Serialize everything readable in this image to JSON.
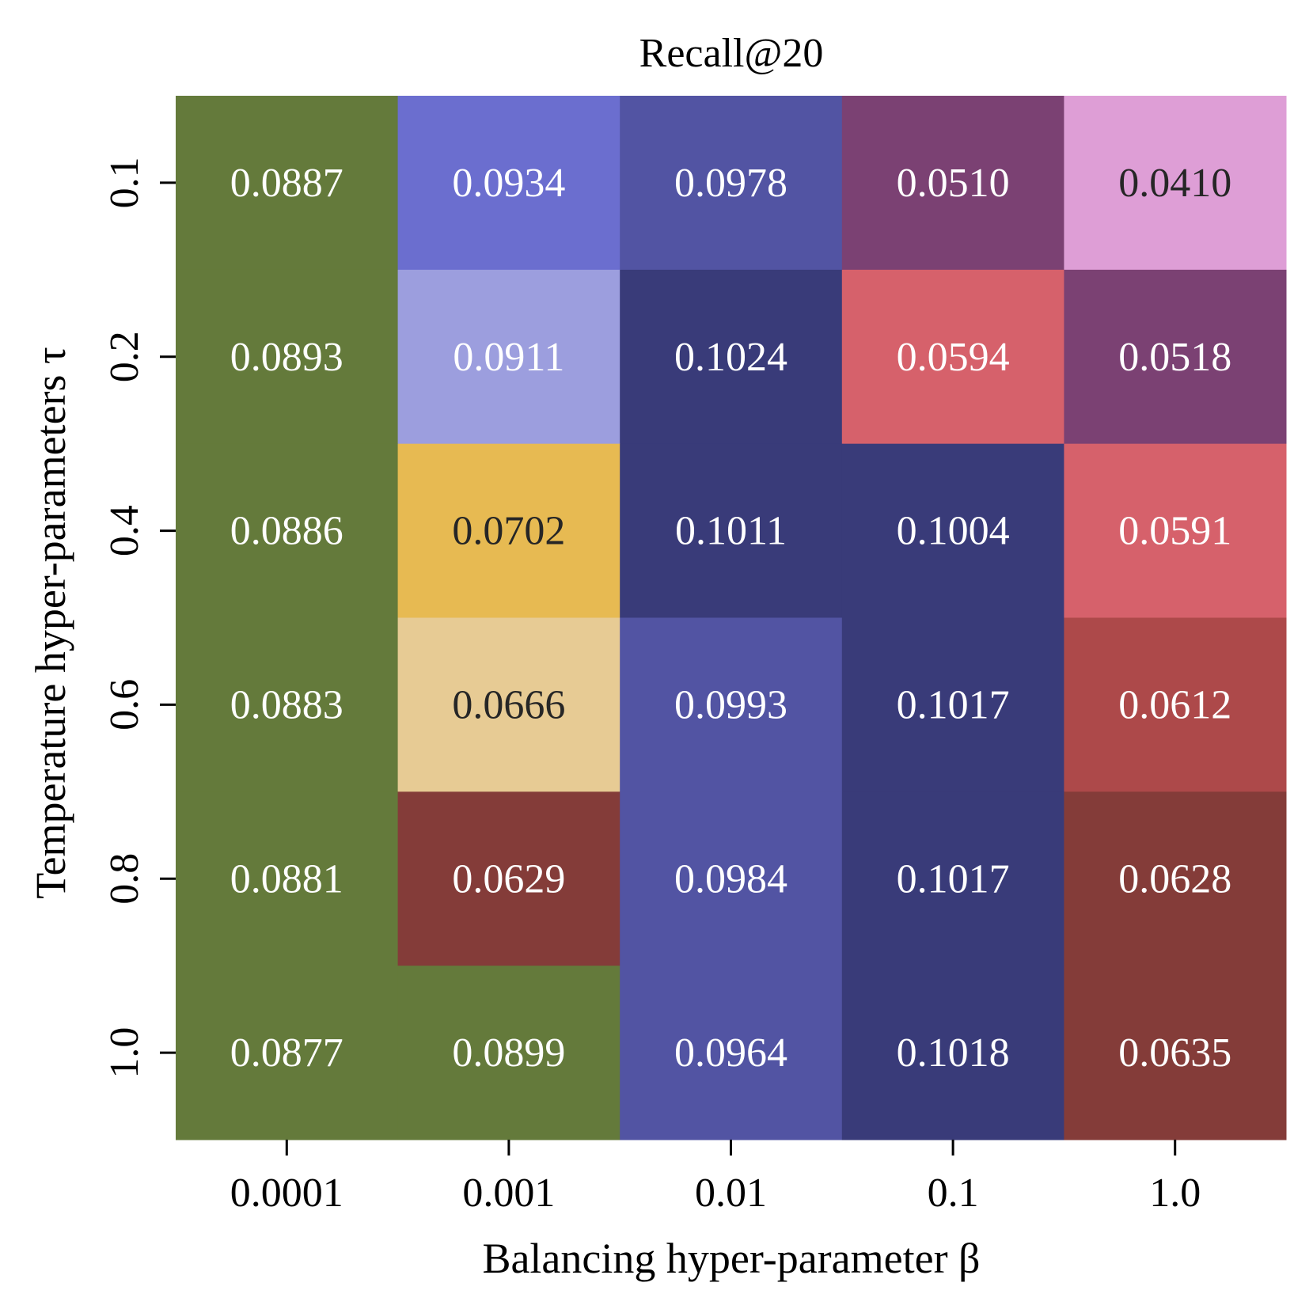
{
  "chart_data": {
    "type": "heatmap",
    "title": "Recall@20",
    "xlabel": "Balancing hyper-parameter β",
    "ylabel": "Temperature hyper-parameters τ",
    "x_categories": [
      "0.0001",
      "0.001",
      "0.01",
      "0.1",
      "1.0"
    ],
    "y_categories": [
      "0.1",
      "0.2",
      "0.4",
      "0.6",
      "0.8",
      "1.0"
    ],
    "values": [
      [
        "0.0887",
        "0.0934",
        "0.0978",
        "0.0510",
        "0.0410"
      ],
      [
        "0.0893",
        "0.0911",
        "0.1024",
        "0.0594",
        "0.0518"
      ],
      [
        "0.0886",
        "0.0702",
        "0.1011",
        "0.1004",
        "0.0591"
      ],
      [
        "0.0883",
        "0.0666",
        "0.0993",
        "0.1017",
        "0.0612"
      ],
      [
        "0.0881",
        "0.0629",
        "0.0984",
        "0.1017",
        "0.0628"
      ],
      [
        "0.0877",
        "0.0899",
        "0.0964",
        "0.1018",
        "0.0635"
      ]
    ],
    "cell_colors": [
      [
        "#647a3b",
        "#6b6ecf",
        "#5254a3",
        "#7b4173",
        "#de9ed6"
      ],
      [
        "#647a3b",
        "#9c9ede",
        "#393b79",
        "#d6616b",
        "#7b4173"
      ],
      [
        "#647a3b",
        "#e7ba52",
        "#393b79",
        "#393b79",
        "#d6616b"
      ],
      [
        "#647a3b",
        "#e7cb94",
        "#5254a3",
        "#393b79",
        "#ad494a"
      ],
      [
        "#647a3b",
        "#843c39",
        "#5254a3",
        "#393b79",
        "#843c39"
      ],
      [
        "#647a3b",
        "#647a3b",
        "#5254a3",
        "#393b79",
        "#843c39"
      ]
    ],
    "text_colors": [
      [
        "#ffffff",
        "#ffffff",
        "#ffffff",
        "#ffffff",
        "#262626"
      ],
      [
        "#ffffff",
        "#ffffff",
        "#ffffff",
        "#ffffff",
        "#ffffff"
      ],
      [
        "#ffffff",
        "#262626",
        "#ffffff",
        "#ffffff",
        "#ffffff"
      ],
      [
        "#ffffff",
        "#262626",
        "#ffffff",
        "#ffffff",
        "#ffffff"
      ],
      [
        "#ffffff",
        "#ffffff",
        "#ffffff",
        "#ffffff",
        "#ffffff"
      ],
      [
        "#ffffff",
        "#ffffff",
        "#ffffff",
        "#ffffff",
        "#ffffff"
      ]
    ],
    "grid": false,
    "legend": "none"
  }
}
